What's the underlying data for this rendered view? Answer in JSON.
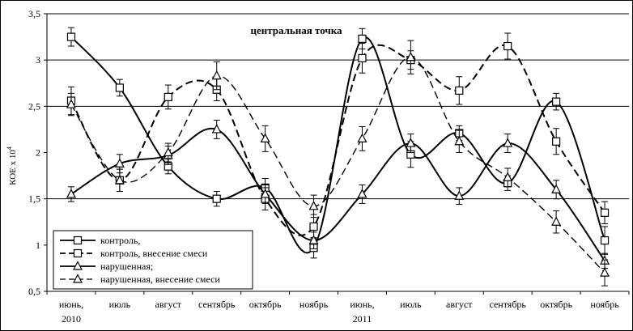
{
  "chart_data": {
    "type": "line",
    "title": "центральная точка",
    "ylabel": "КОЕ х 10",
    "ylabel_superscript": "4",
    "ylim": [
      0.5,
      3.5
    ],
    "yticks": [
      "0,5",
      "1",
      "1,5",
      "2",
      "2,5",
      "3",
      "3,5"
    ],
    "gridlines_at": [
      1.5,
      2.5,
      3.0,
      3.5
    ],
    "categories": [
      "июнь,",
      "июль",
      "август",
      "сентябрь",
      "октябрь",
      "ноябрь",
      "июнь,",
      "июль",
      "август",
      "сентябрь",
      "октябрь",
      "ноябрь"
    ],
    "year_labels": [
      {
        "index": 0,
        "text": "2010"
      },
      {
        "index": 6,
        "text": "2011"
      }
    ],
    "legend_position": "bottom-left",
    "series": [
      {
        "name": "контроль,",
        "marker": "square",
        "dash": "solid",
        "values": [
          3.25,
          2.7,
          1.85,
          1.5,
          1.62,
          0.97,
          3.23,
          1.98,
          2.21,
          1.67,
          2.55,
          1.05
        ],
        "errors": [
          0.1,
          0.09,
          0.08,
          0.08,
          0.1,
          0.11,
          0.11,
          0.14,
          0.08,
          0.08,
          0.09,
          0.15
        ]
      },
      {
        "name": "контроль, внесение смеси",
        "marker": "square",
        "dash": "dashed",
        "values": [
          2.56,
          1.7,
          2.6,
          2.68,
          1.5,
          1.2,
          3.02,
          3.0,
          2.67,
          3.15,
          2.12,
          1.35
        ],
        "errors": [
          0.15,
          0.12,
          0.13,
          0.12,
          0.12,
          0.13,
          0.16,
          0.1,
          0.15,
          0.14,
          0.14,
          0.12
        ]
      },
      {
        "name": "нарушенная;",
        "marker": "triangle",
        "dash": "solid",
        "values": [
          1.55,
          1.88,
          1.97,
          2.25,
          1.55,
          1.05,
          1.55,
          2.1,
          1.53,
          2.1,
          1.6,
          0.83
        ],
        "errors": [
          0.08,
          0.1,
          0.1,
          0.1,
          0.1,
          0.09,
          0.1,
          0.1,
          0.09,
          0.1,
          0.1,
          0.08
        ]
      },
      {
        "name": "нарушенная, внесение смеси",
        "marker": "triangle",
        "dash": "dashed",
        "values": [
          2.52,
          1.7,
          2.0,
          2.83,
          2.15,
          1.42,
          2.15,
          3.03,
          2.12,
          1.73,
          1.25,
          0.7
        ],
        "errors": [
          0.12,
          0.12,
          0.1,
          0.15,
          0.14,
          0.12,
          0.13,
          0.18,
          0.12,
          0.1,
          0.12,
          0.14
        ]
      }
    ]
  }
}
